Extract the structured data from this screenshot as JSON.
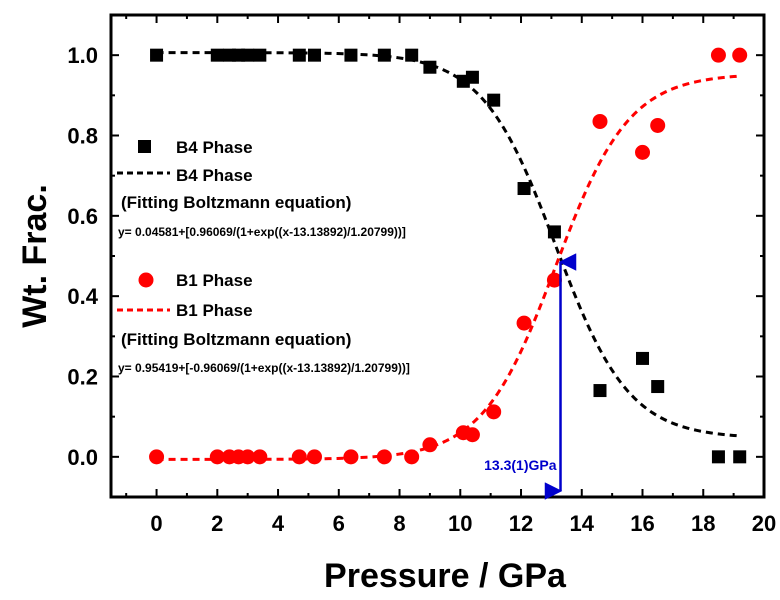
{
  "chart_data": {
    "type": "scatter",
    "xlabel": "Pressure / GPa",
    "ylabel": "Wt. Frac.",
    "xlim": [
      -1.5,
      20
    ],
    "ylim": [
      -0.1,
      1.1
    ],
    "xticks": [
      0,
      2,
      4,
      6,
      8,
      10,
      12,
      14,
      16,
      18,
      20
    ],
    "xtick_labels": [
      "0",
      "2",
      "4",
      "6",
      "8",
      "10",
      "12",
      "14",
      "16",
      "18",
      "20"
    ],
    "yticks": [
      0.0,
      0.2,
      0.4,
      0.6,
      0.8,
      1.0
    ],
    "ytick_labels": [
      "0.0",
      "0.2",
      "0.4",
      "0.6",
      "0.8",
      "1.0"
    ],
    "series": [
      {
        "name": "B4 Phase",
        "marker": "square",
        "color": "#000000",
        "x": [
          0,
          2.0,
          2.4,
          2.7,
          3.0,
          3.4,
          4.7,
          5.2,
          6.4,
          7.5,
          8.4,
          9.0,
          10.1,
          10.4,
          11.1,
          12.1,
          13.1,
          14.6,
          16.0,
          16.5,
          18.5,
          19.2
        ],
        "y": [
          1.0,
          1.0,
          1.0,
          1.0,
          1.0,
          1.0,
          1.0,
          1.0,
          1.0,
          1.0,
          1.0,
          0.97,
          0.935,
          0.945,
          0.888,
          0.668,
          0.56,
          0.165,
          0.245,
          0.175,
          0.0,
          0.0
        ]
      },
      {
        "name": "B1 Phase",
        "marker": "circle",
        "color": "#ff0000",
        "x": [
          0,
          2.0,
          2.4,
          2.7,
          3.0,
          3.4,
          4.7,
          5.2,
          6.4,
          7.5,
          8.4,
          9.0,
          10.1,
          10.4,
          11.1,
          12.1,
          13.1,
          14.6,
          16.0,
          16.5,
          18.5,
          19.2
        ],
        "y": [
          0.0,
          0.0,
          0.0,
          0.0,
          0.0,
          0.0,
          0.0,
          0.0,
          0.0,
          0.0,
          0.0,
          0.03,
          0.06,
          0.055,
          0.112,
          0.333,
          0.44,
          0.835,
          0.758,
          0.825,
          1.0,
          1.0
        ]
      }
    ],
    "fits": [
      {
        "name": "B4 Phase",
        "color": "#000000",
        "A1": 1.0065,
        "A2": 0.04581,
        "x0": 13.13892,
        "dx": 1.20799,
        "x_range": [
          0,
          19.2
        ]
      },
      {
        "name": "B1 Phase",
        "color": "#ff0000",
        "A1": -0.0065,
        "A2": 0.95419,
        "x0": 13.13892,
        "dx": 1.20799,
        "x_range": [
          0,
          19.2
        ]
      }
    ],
    "legend": {
      "position": "left",
      "b4_marker_label": "B4 Phase",
      "b4_line_label": "B4 Phase",
      "b4_method": "(Fitting Boltzmann equation)",
      "b4_equation": "y= 0.04581+[0.96069/(1+exp((x-13.13892)/1.20799))]",
      "b1_marker_label": "B1 Phase",
      "b1_line_label": "B1 Phase",
      "b1_method": "(Fitting Boltzmann equation)",
      "b1_equation": "y= 0.95419+[-0.96069/(1+exp((x-13.13892)/1.20799))]"
    },
    "annotation": {
      "text": "13.3(1)GPa",
      "x": 13.3,
      "y_top": 0.5,
      "y_bottom": -0.1,
      "color": "#0000cc"
    }
  }
}
